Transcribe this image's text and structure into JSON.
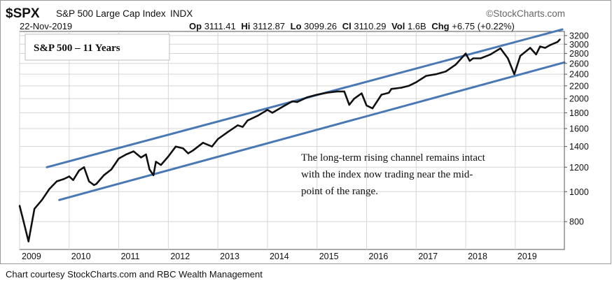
{
  "header": {
    "ticker": "$SPX",
    "name": "S&P 500 Large Cap Index",
    "exchange": "INDX",
    "date": "22-Nov-2019",
    "source": "©StockCharts.com",
    "ohlc": {
      "op_label": "Op",
      "op": "3111.41",
      "hi_label": "Hi",
      "hi": "3112.87",
      "lo_label": "Lo",
      "lo": "3099.26",
      "cl_label": "Cl",
      "cl": "3110.29",
      "vol_label": "Vol",
      "vol": "1.6B",
      "chg_label": "Chg",
      "chg": "+6.75 (+0.22%)"
    }
  },
  "title_box": "S&P 500 – 11 Years",
  "annotation": [
    "The long-term rising channel remains intact",
    "with the index now trading near the mid-",
    "point of the range."
  ],
  "caption": "Chart courtesy StockCharts.com and RBC Wealth Management",
  "colors": {
    "price": "#111111",
    "channel": "#4a78b5",
    "grid": "#d6d6d6",
    "border": "#555555"
  },
  "chart_data": {
    "type": "line",
    "title": "S&P 500 – 11 Years",
    "yscale": "log",
    "ylim": [
      650,
      3300
    ],
    "xlim": [
      2009.0,
      2019.99
    ],
    "x_ticks": [
      "2009",
      "2010",
      "2011",
      "2012",
      "2013",
      "2014",
      "2015",
      "2016",
      "2017",
      "2018",
      "2019"
    ],
    "y_ticks": [
      800,
      1000,
      1200,
      1400,
      1600,
      1800,
      2000,
      2200,
      2400,
      2600,
      2800,
      3000,
      3200
    ],
    "series": [
      {
        "x": [
          2009.0,
          2009.08,
          2009.18,
          2009.3,
          2009.45,
          2009.6,
          2009.75,
          2009.9,
          2010.0,
          2010.08,
          2010.2,
          2010.3,
          2010.4,
          2010.5,
          2010.55,
          2010.7,
          2010.85,
          2011.0,
          2011.15,
          2011.3,
          2011.45,
          2011.55,
          2011.62,
          2011.7,
          2011.75,
          2011.85,
          2012.0,
          2012.15,
          2012.3,
          2012.4,
          2012.5,
          2012.7,
          2012.88,
          2013.0,
          2013.2,
          2013.4,
          2013.5,
          2013.6,
          2013.8,
          2014.0,
          2014.1,
          2014.3,
          2014.5,
          2014.6,
          2014.8,
          2015.0,
          2015.2,
          2015.4,
          2015.55,
          2015.65,
          2015.75,
          2015.9,
          2016.0,
          2016.12,
          2016.3,
          2016.45,
          2016.5,
          2016.7,
          2016.85,
          2017.0,
          2017.2,
          2017.4,
          2017.6,
          2017.8,
          2018.0,
          2018.08,
          2018.15,
          2018.3,
          2018.5,
          2018.7,
          2018.85,
          2018.98,
          2019.1,
          2019.3,
          2019.42,
          2019.5,
          2019.6,
          2019.7,
          2019.85,
          2019.9
        ],
        "y": [
          900,
          800,
          690,
          880,
          940,
          1020,
          1080,
          1100,
          1120,
          1090,
          1170,
          1200,
          1080,
          1050,
          1060,
          1130,
          1180,
          1280,
          1320,
          1350,
          1290,
          1320,
          1180,
          1130,
          1250,
          1220,
          1300,
          1400,
          1380,
          1330,
          1360,
          1440,
          1400,
          1480,
          1560,
          1640,
          1620,
          1700,
          1760,
          1840,
          1800,
          1880,
          1960,
          1950,
          2020,
          2060,
          2090,
          2110,
          2110,
          1910,
          2000,
          2080,
          1900,
          1860,
          2060,
          2090,
          2150,
          2170,
          2200,
          2260,
          2370,
          2400,
          2450,
          2580,
          2800,
          2650,
          2700,
          2700,
          2780,
          2910,
          2700,
          2400,
          2750,
          2920,
          2780,
          2950,
          2920,
          2980,
          3050,
          3110
        ]
      }
    ],
    "channel": [
      {
        "from": [
          "2009.55",
          1200
        ],
        "to": [
          "2019.95",
          3350
        ]
      },
      {
        "from": [
          "2009.8",
          940
        ],
        "to": [
          "2019.99",
          2620
        ]
      }
    ]
  }
}
